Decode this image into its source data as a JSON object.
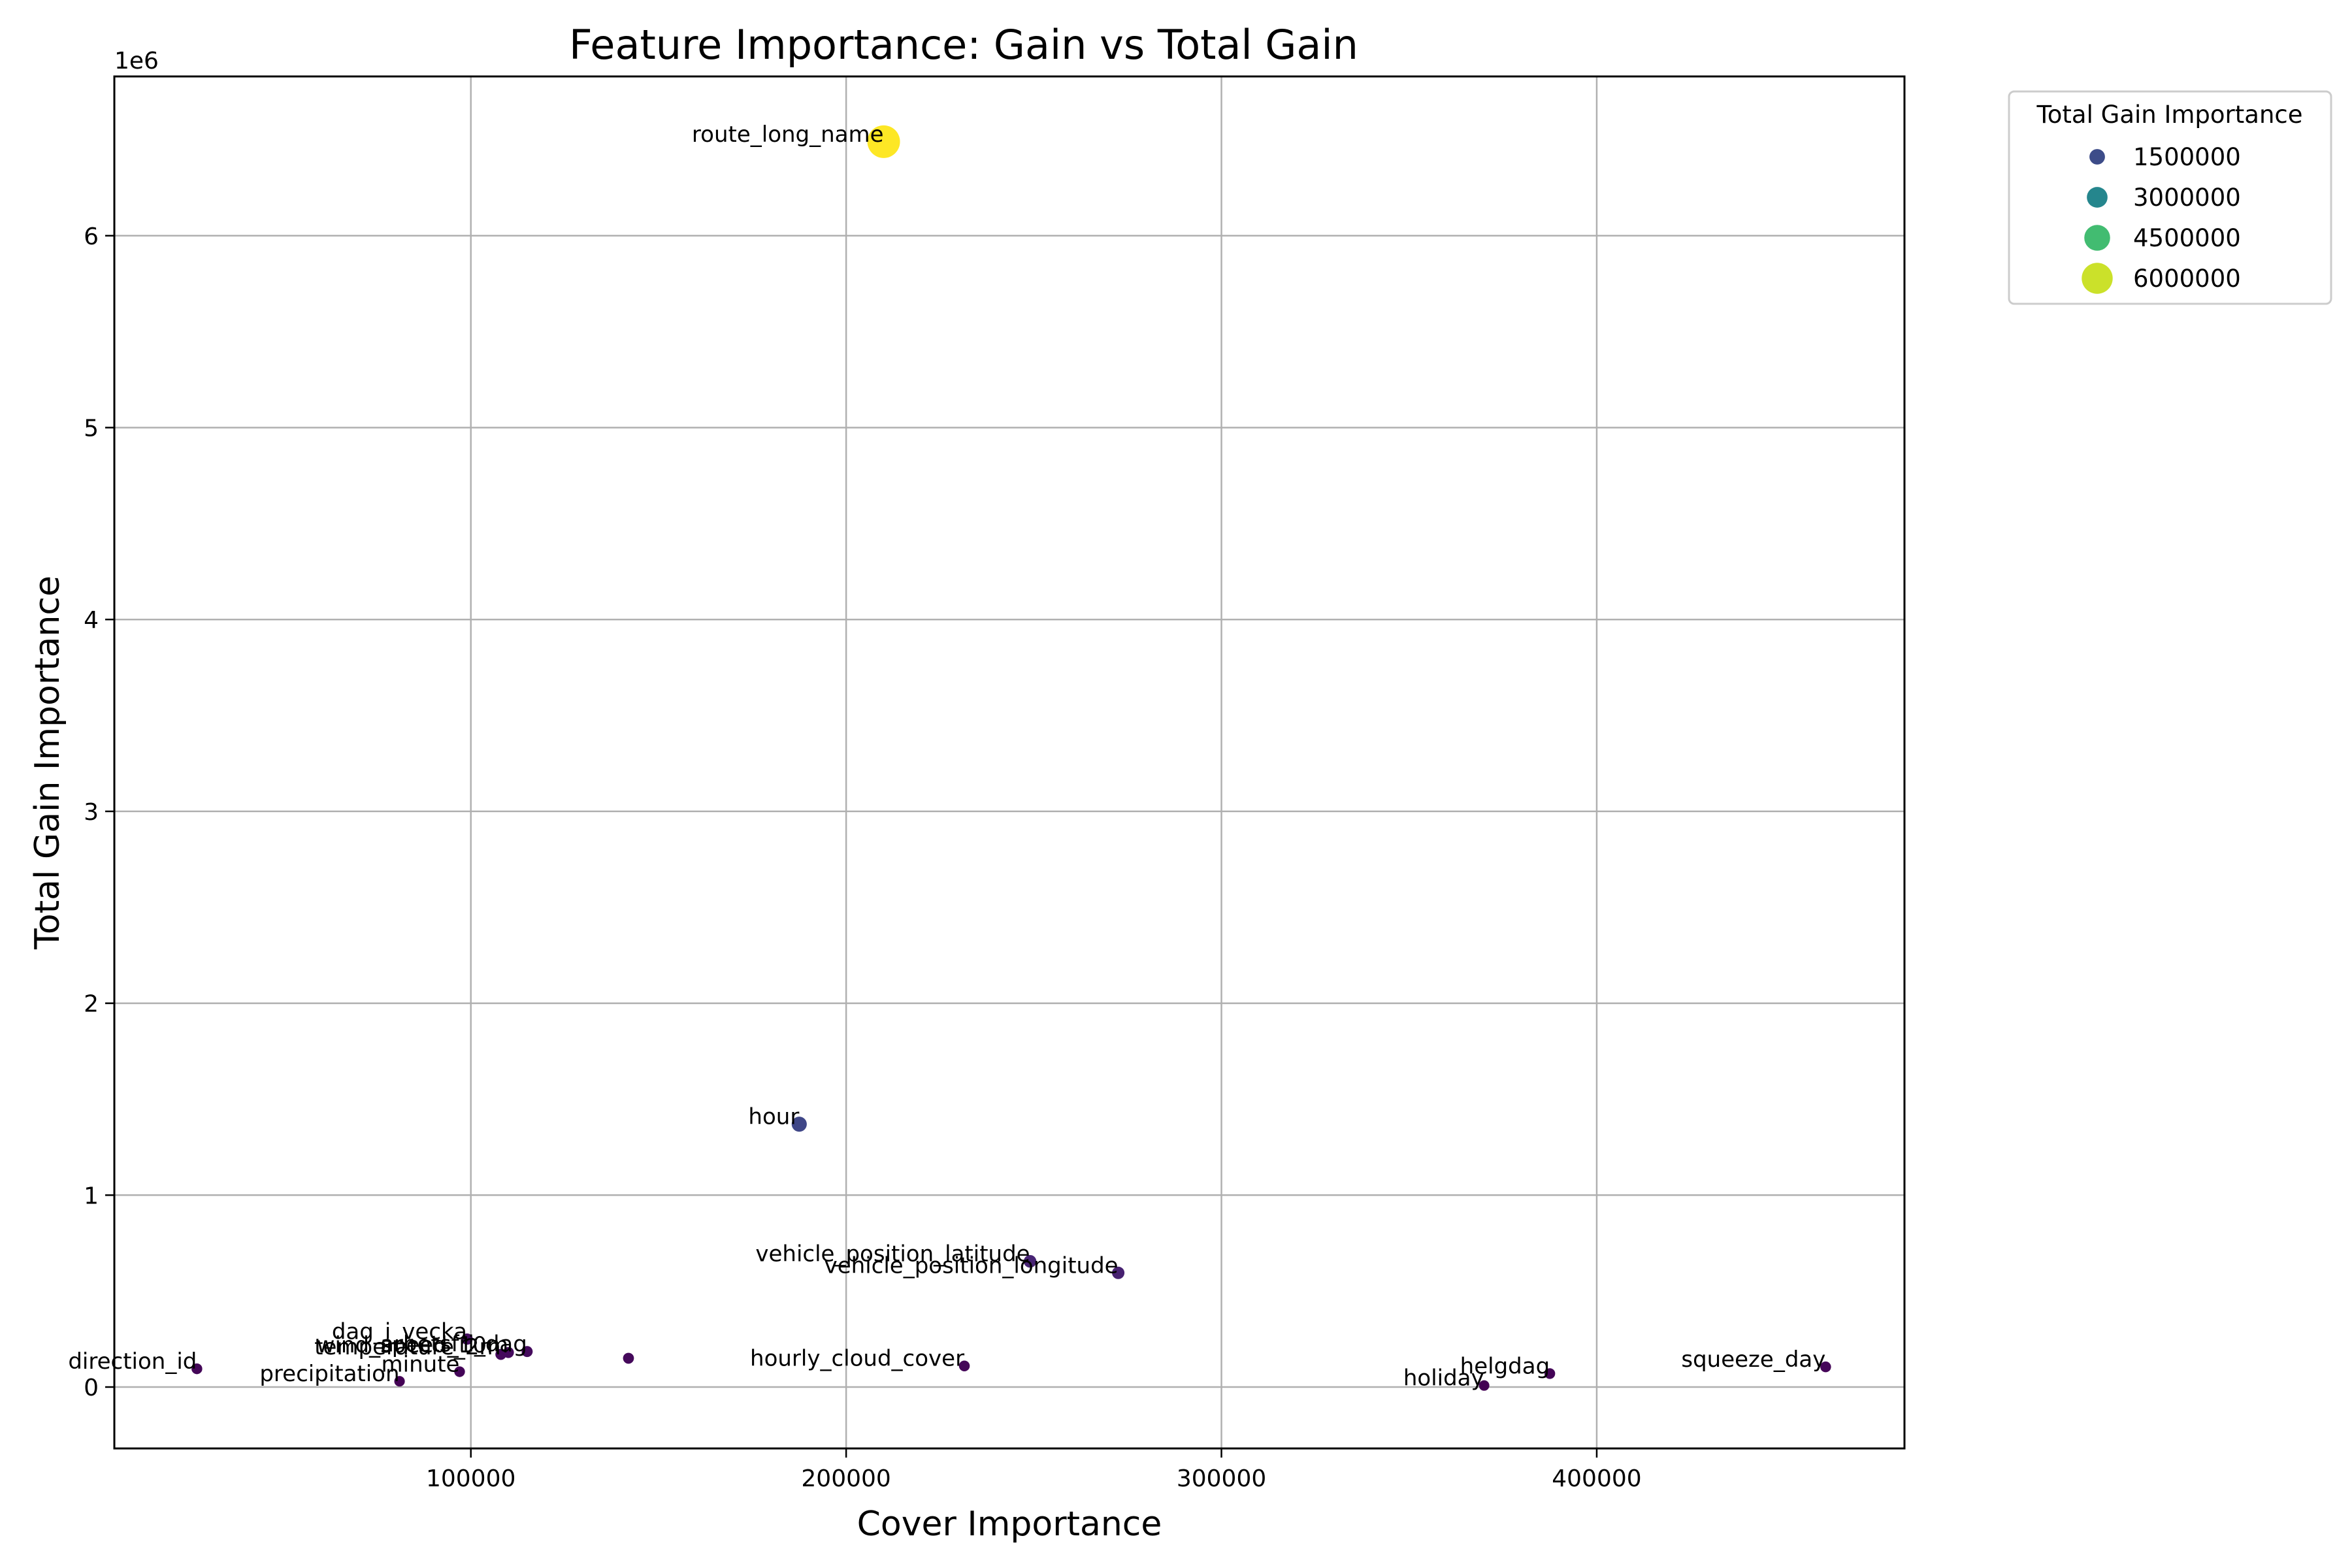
{
  "chart_data": {
    "type": "scatter",
    "title": "Feature Importance: Gain vs Total Gain",
    "xlabel": "Cover Importance",
    "ylabel": "Total Gain Importance",
    "y_offset_text": "1e6",
    "xlim": [
      5000,
      482000
    ],
    "ylim": [
      -320000,
      6830000
    ],
    "x_ticks": [
      100000,
      200000,
      300000,
      400000
    ],
    "x_tick_labels": [
      "100000",
      "200000",
      "300000",
      "400000"
    ],
    "y_ticks": [
      0,
      1000000,
      2000000,
      3000000,
      4000000,
      5000000,
      6000000
    ],
    "y_tick_labels": [
      "0",
      "1",
      "2",
      "3",
      "4",
      "5",
      "6"
    ],
    "grid": true,
    "colormap": "viridis",
    "legend": {
      "title": "Total Gain Importance",
      "placement": "outside-top-right",
      "entries": [
        {
          "label": "1500000",
          "value": 1500000
        },
        {
          "label": "3000000",
          "value": 3000000
        },
        {
          "label": "4500000",
          "value": 4500000
        },
        {
          "label": "6000000",
          "value": 6000000
        }
      ]
    },
    "points": [
      {
        "label": "route_long_name",
        "x": 210000,
        "y": 6490000
      },
      {
        "label": "hour",
        "x": 187500,
        "y": 1370000
      },
      {
        "label": "vehicle_position_latitude",
        "x": 249000,
        "y": 655000
      },
      {
        "label": "vehicle_position_longitude",
        "x": 272500,
        "y": 595000
      },
      {
        "label": "dag_i_vecka",
        "x": 99000,
        "y": 250000
      },
      {
        "label": "wind_speed_10m",
        "x": 110000,
        "y": 180000
      },
      {
        "label": "temperature_2m",
        "x": 108000,
        "y": 170000
      },
      {
        "label": "arbetsfri_dag",
        "x": 115000,
        "y": 185000
      },
      {
        "label": "",
        "x": 142000,
        "y": 150000
      },
      {
        "label": "direction_id",
        "x": 27000,
        "y": 95000
      },
      {
        "label": "minute",
        "x": 97000,
        "y": 80000
      },
      {
        "label": "precipitation",
        "x": 81000,
        "y": 30000
      },
      {
        "label": "hourly_cloud_cover",
        "x": 231500,
        "y": 110000
      },
      {
        "label": "squeeze_day",
        "x": 461000,
        "y": 105000
      },
      {
        "label": "helgdag",
        "x": 387500,
        "y": 70000
      },
      {
        "label": "holiday",
        "x": 370000,
        "y": 8000
      }
    ]
  }
}
